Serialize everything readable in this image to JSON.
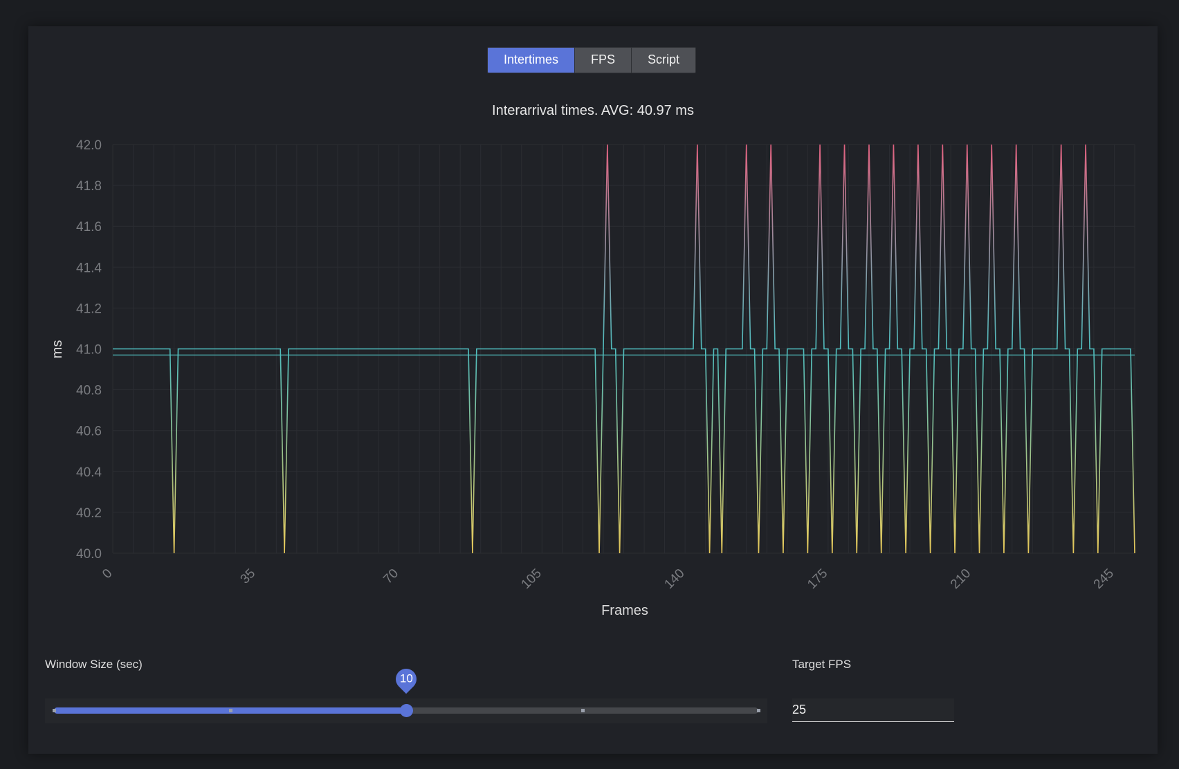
{
  "tabs": [
    {
      "label": "Intertimes",
      "active": true
    },
    {
      "label": "FPS",
      "active": false
    },
    {
      "label": "Script",
      "active": false
    }
  ],
  "chart_data": {
    "type": "line",
    "title": "Interarrival times. AVG: 40.97 ms",
    "xlabel": "Frames",
    "ylabel": "ms",
    "xlim": [
      0,
      250
    ],
    "ylim": [
      40.0,
      42.0
    ],
    "x_ticks": [
      0,
      35,
      70,
      105,
      140,
      175,
      210,
      245
    ],
    "y_ticks": [
      "40.0",
      "40.2",
      "40.4",
      "40.6",
      "40.8",
      "41.0",
      "41.2",
      "41.4",
      "41.6",
      "41.8",
      "42.0"
    ],
    "grid": true,
    "average": 40.97,
    "baseline": 41,
    "deviations": [
      [
        15,
        40
      ],
      [
        42,
        40
      ],
      [
        88,
        40
      ],
      [
        119,
        40
      ],
      [
        120,
        41
      ],
      [
        121,
        42
      ],
      [
        124,
        40
      ],
      [
        143,
        42
      ],
      [
        146,
        40
      ],
      [
        149,
        40
      ],
      [
        155,
        42
      ],
      [
        158,
        40
      ],
      [
        161,
        42
      ],
      [
        164,
        40
      ],
      [
        170,
        40
      ],
      [
        173,
        42
      ],
      [
        176,
        40
      ],
      [
        179,
        42
      ],
      [
        182,
        40
      ],
      [
        185,
        42
      ],
      [
        188,
        40
      ],
      [
        191,
        42
      ],
      [
        194,
        40
      ],
      [
        197,
        42
      ],
      [
        200,
        40
      ],
      [
        203,
        42
      ],
      [
        206,
        40
      ],
      [
        209,
        42
      ],
      [
        212,
        40
      ],
      [
        215,
        42
      ],
      [
        218,
        40
      ],
      [
        221,
        42
      ],
      [
        224,
        40
      ],
      [
        232,
        42
      ],
      [
        235,
        40
      ],
      [
        238,
        42
      ],
      [
        241,
        40
      ],
      [
        250,
        40
      ]
    ],
    "colors": {
      "high": "#e06280",
      "mid": "#4fbfc0",
      "low": "#e6c85a",
      "avg_line": "#4fbfc0"
    }
  },
  "controls": {
    "window_size_label": "Window Size (sec)",
    "window_size_value": "10",
    "window_size_min": 0,
    "window_size_max": 20,
    "window_size_marks": [
      0,
      5,
      15,
      20
    ],
    "target_fps_label": "Target FPS",
    "target_fps_value": "25"
  }
}
